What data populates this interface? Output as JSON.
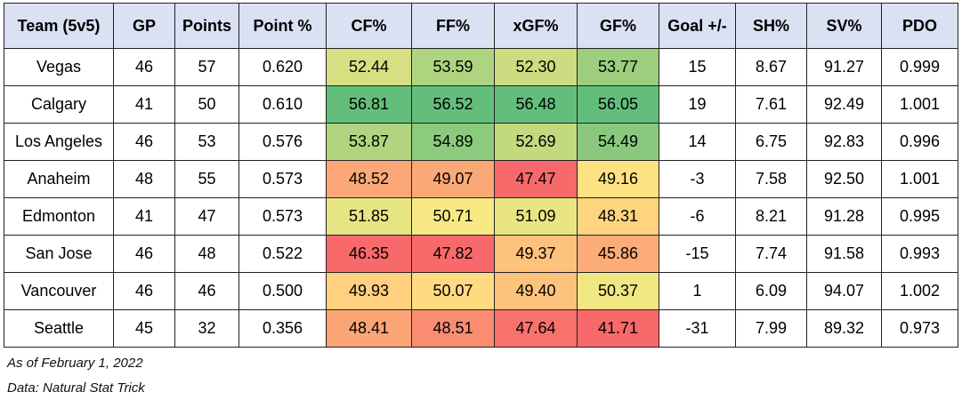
{
  "table": {
    "columns": [
      "Team (5v5)",
      "GP",
      "Points",
      "Point %",
      "CF%",
      "FF%",
      "xGF%",
      "GF%",
      "Goal +/-",
      "SH%",
      "SV%",
      "PDO"
    ],
    "heat_columns": [
      4,
      5,
      6,
      7
    ],
    "heat_colors": [
      "#f8696b",
      "#ffeb84",
      "#63be7b"
    ],
    "rows": [
      [
        "Vegas",
        "46",
        "57",
        "0.620",
        "52.44",
        "53.59",
        "52.30",
        "53.77",
        "15",
        "8.67",
        "91.27",
        "0.999"
      ],
      [
        "Calgary",
        "41",
        "50",
        "0.610",
        "56.81",
        "56.52",
        "56.48",
        "56.05",
        "19",
        "7.61",
        "92.49",
        "1.001"
      ],
      [
        "Los Angeles",
        "46",
        "53",
        "0.576",
        "53.87",
        "54.89",
        "52.69",
        "54.49",
        "14",
        "6.75",
        "92.83",
        "0.996"
      ],
      [
        "Anaheim",
        "48",
        "55",
        "0.573",
        "48.52",
        "49.07",
        "47.47",
        "49.16",
        "-3",
        "7.58",
        "92.50",
        "1.001"
      ],
      [
        "Edmonton",
        "41",
        "47",
        "0.573",
        "51.85",
        "50.71",
        "51.09",
        "48.31",
        "-6",
        "8.21",
        "91.28",
        "0.995"
      ],
      [
        "San Jose",
        "46",
        "48",
        "0.522",
        "46.35",
        "47.82",
        "49.37",
        "45.86",
        "-15",
        "7.74",
        "91.58",
        "0.993"
      ],
      [
        "Vancouver",
        "46",
        "46",
        "0.500",
        "49.93",
        "50.07",
        "49.40",
        "50.37",
        "1",
        "6.09",
        "94.07",
        "1.002"
      ],
      [
        "Seattle",
        "45",
        "32",
        "0.356",
        "48.41",
        "48.51",
        "47.64",
        "41.71",
        "-31",
        "7.99",
        "89.32",
        "0.973"
      ]
    ]
  },
  "notes": [
    "As of February 1, 2022",
    "Data: Natural Stat Trick"
  ]
}
